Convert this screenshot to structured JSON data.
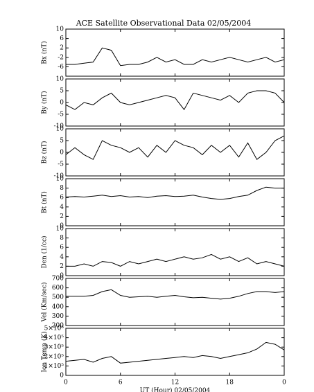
{
  "chart_data": [
    {
      "type": "line",
      "title": "ACE Satellite Observational Data   02/05/2004",
      "ylabel": "Bx (nT)",
      "x": [
        0,
        1,
        2,
        3,
        4,
        5,
        6,
        7,
        8,
        9,
        10,
        11,
        12,
        13,
        14,
        15,
        16,
        17,
        18,
        19,
        20,
        21,
        22,
        23,
        24
      ],
      "values": [
        -5,
        -5,
        -4.5,
        -4,
        2,
        1,
        -5.5,
        -5,
        -5,
        -4,
        -2,
        -4,
        -3,
        -5,
        -5,
        -3,
        -4,
        -3,
        -2,
        -3,
        -4,
        -3,
        -2,
        -4,
        -3
      ],
      "ylim": [
        -10,
        10
      ],
      "yticks": [
        10,
        6,
        2,
        -2,
        -6
      ],
      "color": "#000000"
    },
    {
      "type": "line",
      "ylabel": "By (nT)",
      "x": [
        0,
        1,
        2,
        3,
        4,
        5,
        6,
        7,
        8,
        9,
        10,
        11,
        12,
        13,
        14,
        15,
        16,
        17,
        18,
        19,
        20,
        21,
        22,
        23,
        24
      ],
      "values": [
        -1,
        -3,
        0,
        -1,
        2,
        4,
        0,
        -1,
        0,
        1,
        2,
        3,
        2,
        -3,
        4,
        3,
        2,
        1,
        3,
        0,
        4,
        5,
        5,
        4,
        0
      ],
      "ylim": [
        -10,
        10
      ],
      "yticks": [
        10,
        5,
        0,
        -5,
        -10
      ],
      "color": "#000000"
    },
    {
      "type": "line",
      "ylabel": "Bz (nT)",
      "x": [
        0,
        1,
        2,
        3,
        4,
        5,
        6,
        7,
        8,
        9,
        10,
        11,
        12,
        13,
        14,
        15,
        16,
        17,
        18,
        19,
        20,
        21,
        22,
        23,
        24
      ],
      "values": [
        -1,
        2,
        -1,
        -3,
        5,
        3,
        2,
        0,
        2,
        -2,
        3,
        0,
        5,
        3,
        2,
        -1,
        3,
        0,
        3,
        -2,
        4,
        -3,
        0,
        5,
        7
      ],
      "ylim": [
        -10,
        10
      ],
      "yticks": [
        10,
        5,
        0,
        -5,
        -10
      ],
      "color": "#000000"
    },
    {
      "type": "line",
      "ylabel": "Bt (nT)",
      "x": [
        0,
        1,
        2,
        3,
        4,
        5,
        6,
        7,
        8,
        9,
        10,
        11,
        12,
        13,
        14,
        15,
        16,
        17,
        18,
        19,
        20,
        21,
        22,
        23,
        24
      ],
      "values": [
        6.1,
        6.2,
        6.1,
        6.3,
        6.5,
        6.2,
        6.4,
        6.1,
        6.2,
        6.0,
        6.3,
        6.4,
        6.2,
        6.3,
        6.5,
        6.1,
        5.8,
        5.6,
        5.8,
        6.2,
        6.5,
        7.5,
        8.2,
        8.0,
        8.0
      ],
      "ylim": [
        0,
        10
      ],
      "yticks": [
        10,
        8,
        6,
        4,
        2,
        0
      ],
      "color": "#000000"
    },
    {
      "type": "line",
      "ylabel": "Den (1/cc)",
      "x": [
        0,
        1,
        2,
        3,
        4,
        5,
        6,
        7,
        8,
        9,
        10,
        11,
        12,
        13,
        14,
        15,
        16,
        17,
        18,
        19,
        20,
        21,
        22,
        23,
        24
      ],
      "values": [
        2,
        2,
        2.5,
        2,
        3,
        2.8,
        2,
        3,
        2.5,
        3,
        3.5,
        3,
        3.5,
        4,
        3.5,
        3.8,
        4.5,
        3.5,
        4,
        3,
        3.8,
        2.5,
        3,
        2.5,
        2
      ],
      "ylim": [
        0,
        10
      ],
      "yticks": [
        10,
        8,
        6,
        4,
        2,
        0
      ],
      "color": "#000000"
    },
    {
      "type": "line",
      "ylabel": "Vel (Km/sec)",
      "x": [
        0,
        1,
        2,
        3,
        4,
        5,
        6,
        7,
        8,
        9,
        10,
        11,
        12,
        13,
        14,
        15,
        16,
        17,
        18,
        19,
        20,
        21,
        22,
        23,
        24
      ],
      "values": [
        510,
        510,
        510,
        520,
        560,
        580,
        520,
        500,
        505,
        510,
        500,
        510,
        520,
        505,
        495,
        500,
        490,
        480,
        490,
        510,
        540,
        560,
        560,
        550,
        560
      ],
      "ylim": [
        200,
        700
      ],
      "yticks": [
        700,
        600,
        500,
        400,
        300,
        200
      ],
      "color": "#000000"
    },
    {
      "type": "line",
      "ylabel": "Ion Temp (K)",
      "xlabel": "UT (Hour)   02/05/2004",
      "x": [
        0,
        1,
        2,
        3,
        4,
        5,
        6,
        7,
        8,
        9,
        10,
        11,
        12,
        13,
        14,
        15,
        16,
        17,
        18,
        19,
        20,
        21,
        22,
        23,
        24
      ],
      "values": [
        150000,
        160000,
        170000,
        140000,
        180000,
        200000,
        130000,
        140000,
        150000,
        160000,
        170000,
        180000,
        190000,
        200000,
        190000,
        210000,
        200000,
        180000,
        200000,
        220000,
        240000,
        280000,
        350000,
        330000,
        270000
      ],
      "ylim": [
        0,
        500000
      ],
      "yticks": [
        {
          "value": 500000,
          "label": "5×10⁵"
        },
        {
          "value": 400000,
          "label": "4×10⁵"
        },
        {
          "value": 300000,
          "label": "3×10⁵"
        },
        {
          "value": 200000,
          "label": "2×10⁵"
        },
        {
          "value": 100000,
          "label": "1×10⁵"
        },
        0
      ],
      "xlim": [
        0,
        24
      ],
      "xticks": [
        0,
        6,
        12,
        18,
        {
          "value": 24,
          "label": "0"
        }
      ],
      "color": "#000000"
    }
  ]
}
